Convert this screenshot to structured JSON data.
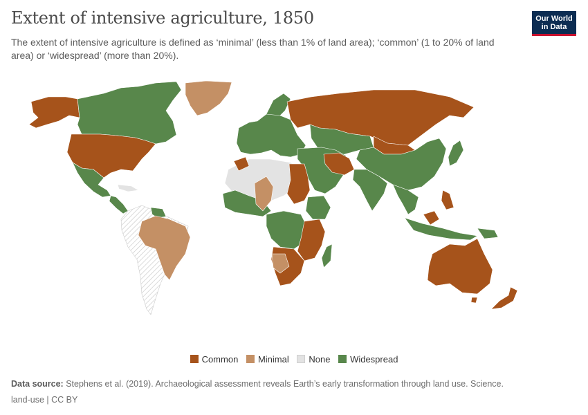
{
  "header": {
    "title": "Extent of intensive agriculture, 1850",
    "subtitle": "The extent of intensive agriculture is defined as ‘minimal’ (less than 1% of land area); ‘common’ (1 to 20% of land area) or ‘widespread’ (more than 20%)."
  },
  "logo": {
    "line1": "Our World",
    "line2": "in Data"
  },
  "colors": {
    "common": "#a6531b",
    "minimal": "#c49065",
    "none": "#e3e3e3",
    "widespread": "#58874b",
    "no_data_hatch": "#cfcfcf"
  },
  "map": {
    "regions": [
      {
        "name": "Alaska",
        "category": "common"
      },
      {
        "name": "Canada",
        "category": "widespread"
      },
      {
        "name": "Greenland",
        "category": "minimal"
      },
      {
        "name": "United States",
        "category": "common"
      },
      {
        "name": "Mexico",
        "category": "widespread"
      },
      {
        "name": "Central America",
        "category": "widespread"
      },
      {
        "name": "Brazil",
        "category": "minimal"
      },
      {
        "name": "Europe",
        "category": "widespread"
      },
      {
        "name": "Russia",
        "category": "common"
      },
      {
        "name": "China",
        "category": "widespread"
      },
      {
        "name": "India",
        "category": "widespread"
      },
      {
        "name": "Australia",
        "category": "common"
      },
      {
        "name": "New Zealand",
        "category": "common"
      }
    ]
  },
  "legend": {
    "items": [
      {
        "label": "Common",
        "color": "#a6531b"
      },
      {
        "label": "Minimal",
        "color": "#c49065"
      },
      {
        "label": "None",
        "color": "#e3e3e3"
      },
      {
        "label": "Widespread",
        "color": "#58874b"
      }
    ]
  },
  "footer": {
    "source_label": "Data source:",
    "source_text": " Stephens et al. (2019). Archaeological assessment reveals Earth’s early transformation through land use. Science.",
    "line2": "land-use | CC BY"
  }
}
